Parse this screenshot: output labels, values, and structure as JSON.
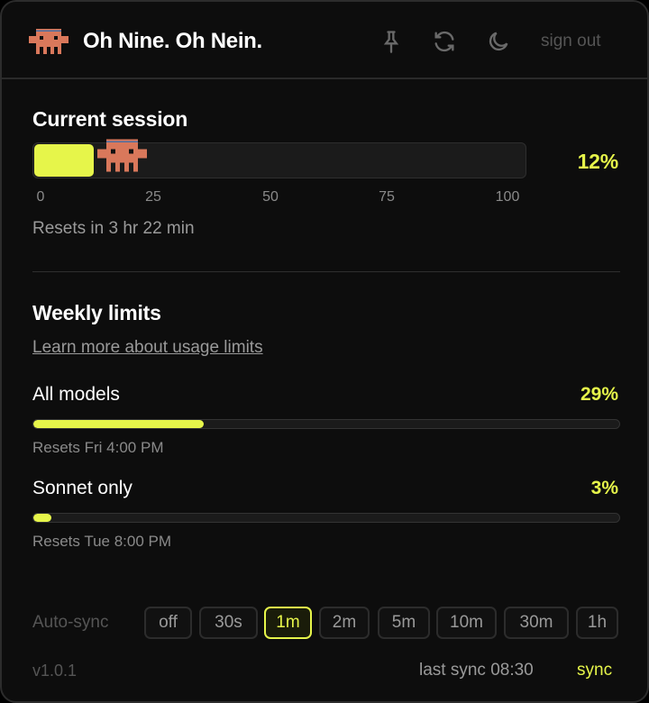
{
  "header": {
    "title": "Oh Nine. Oh Nein.",
    "icons": [
      "pin-icon",
      "refresh-icon",
      "moon-icon"
    ],
    "sign_out": "sign out"
  },
  "session": {
    "title": "Current session",
    "percent": 12,
    "percent_label": "12%",
    "ticks": [
      "0",
      "25",
      "50",
      "75",
      "100"
    ],
    "resets": "Resets in 3 hr 22 min"
  },
  "weekly": {
    "title": "Weekly limits",
    "link": "Learn more about usage limits",
    "items": [
      {
        "label": "All models",
        "percent": 29,
        "percent_label": "29%",
        "resets": "Resets Fri 4:00 PM"
      },
      {
        "label": "Sonnet only",
        "percent": 3,
        "percent_label": "3%",
        "resets": "Resets Tue 8:00 PM"
      }
    ]
  },
  "footer": {
    "autosync_label": "Auto-sync",
    "options": [
      "off",
      "30s",
      "1m",
      "2m",
      "5m",
      "10m",
      "30m",
      "1h"
    ],
    "selected": "1m",
    "version": "v1.0.1",
    "last_sync": "last sync 08:30",
    "sync": "sync"
  },
  "colors": {
    "accent": "#e6f54a",
    "mascot": "#d9785b",
    "mascot_band": "#4a6fa5",
    "background": "#0d0d0d"
  }
}
